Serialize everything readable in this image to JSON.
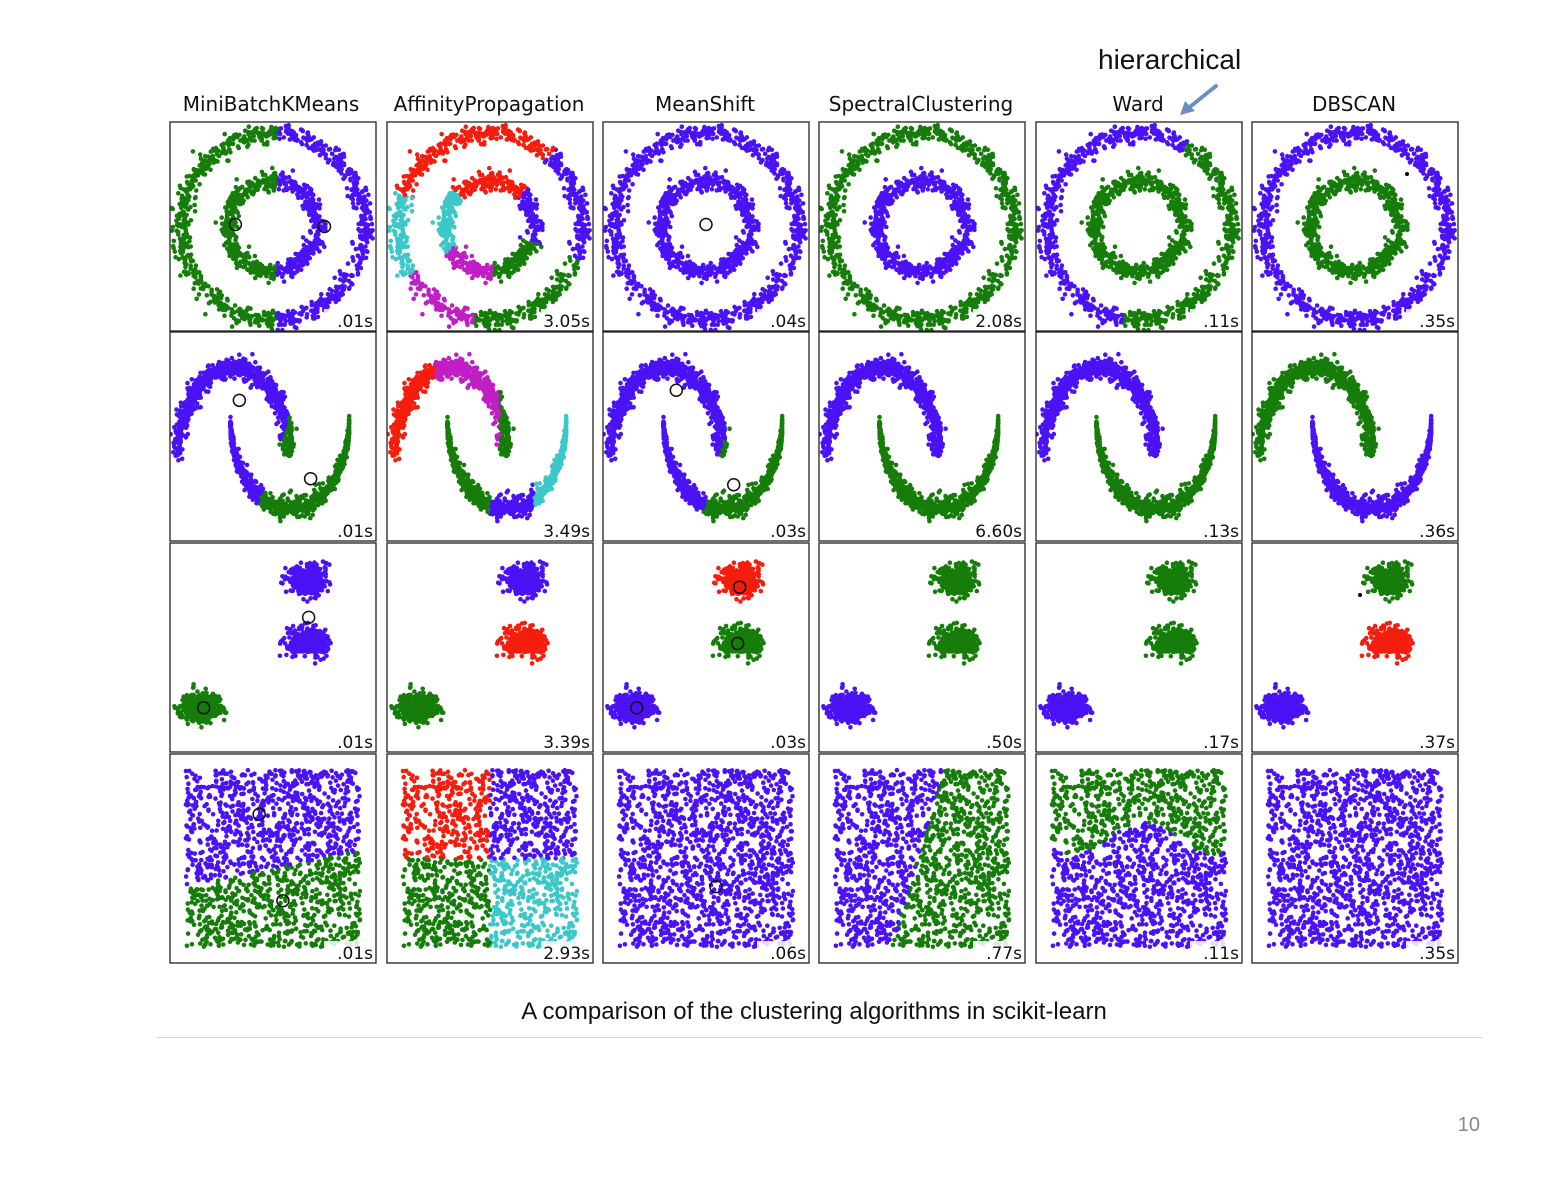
{
  "annotation": {
    "text": "hierarchical"
  },
  "columns": [
    "MiniBatchKMeans",
    "AffinityPropagation",
    "MeanShift",
    "SpectralClustering",
    "Ward",
    "DBSCAN"
  ],
  "caption": "A comparison of the clustering algorithms in scikit-learn",
  "page_number": "10",
  "chart_data": {
    "type": "scatter",
    "title": "",
    "colors": {
      "blue": "#4a12f5",
      "green": "#167d0a",
      "red": "#f51d0d",
      "cyan": "#3cc7c9",
      "magenta": "#c01fc4",
      "black": "#000000"
    },
    "datasets": [
      "noisy_circles",
      "noisy_moons",
      "blobs",
      "no_structure"
    ],
    "timings": [
      [
        ".01s",
        "3.05s",
        ".04s",
        "2.08s",
        ".11s",
        ".35s"
      ],
      [
        ".01s",
        "3.49s",
        ".03s",
        "6.60s",
        ".13s",
        ".36s"
      ],
      [
        ".01s",
        "3.39s",
        ".03s",
        ".50s",
        ".17s",
        ".37s"
      ],
      [
        ".01s",
        "2.93s",
        ".06s",
        ".77s",
        ".11s",
        ".35s"
      ]
    ],
    "clusterings": [
      [
        "circles_kmeans",
        "circles_affinity",
        "circles_meanshift",
        "circles_spectral",
        "circles_ward",
        "circles_dbscan"
      ],
      [
        "moons_kmeans",
        "moons_affinity",
        "moons_meanshift",
        "moons_spectral",
        "moons_ward",
        "moons_dbscan"
      ],
      [
        "blobs_kmeans",
        "blobs_affinity",
        "blobs_meanshift",
        "blobs_spectral",
        "blobs_ward",
        "blobs_dbscan"
      ],
      [
        "uniform_kmeans",
        "uniform_affinity",
        "uniform_meanshift",
        "uniform_spectral",
        "uniform_ward",
        "uniform_dbscan"
      ]
    ]
  }
}
